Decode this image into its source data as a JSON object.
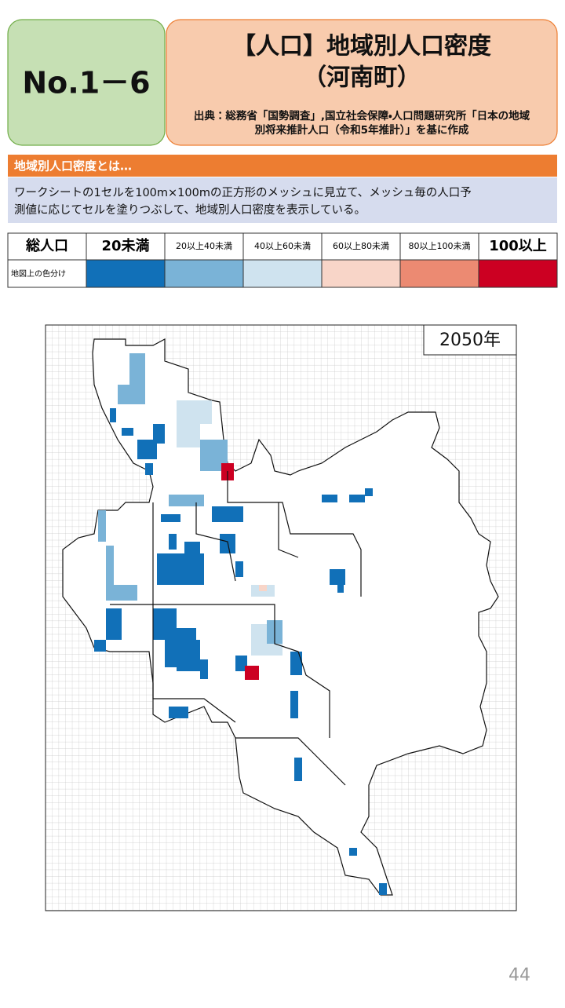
{
  "header": {
    "number": "No.1－6",
    "title": "【人口】地域別人口密度",
    "subtitle": "（河南町）",
    "source": [
      "出典：総務省「国勢調査」,国立社会保障・人口問題研究所「日本の地域",
      "別将来推計人口（令和5年推計）」を基に作成"
    ]
  },
  "section": {
    "heading": "地域別人口密度とは…",
    "description": [
      "ワークシートの1セルを100m×100mの正方形のメッシュに見立て、メッシュ毎の人口予",
      "測値に応じてセルを塗りつぶして、地域別人口密度を表示している。"
    ]
  },
  "legend": {
    "header": "総人口",
    "row_label": "地図上の色分け",
    "items": [
      {
        "label": "20未満",
        "color": "#1170b8"
      },
      {
        "label": "20以上40未満",
        "color": "#7ab3d7"
      },
      {
        "label": "40以上60未満",
        "color": "#cfe3ef"
      },
      {
        "label": "60以上80未満",
        "color": "#f8d5c8"
      },
      {
        "label": "80以上100未満",
        "color": "#ec8a72"
      },
      {
        "label": "100以上",
        "color": "#cc0022"
      }
    ]
  },
  "map": {
    "year": "2050年"
  },
  "page_number": "44"
}
